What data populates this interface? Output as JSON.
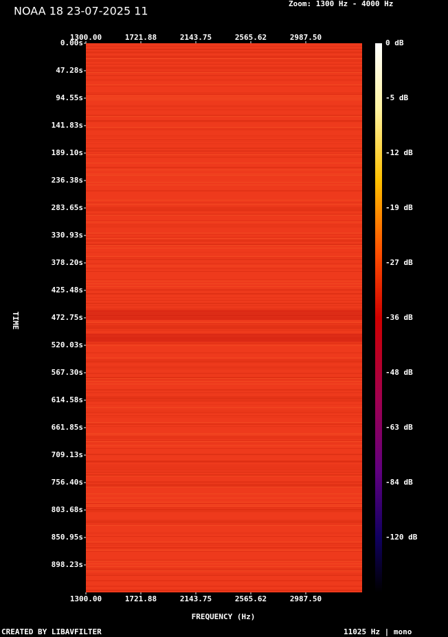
{
  "header": {
    "title": "NOAA 18 23-07-2025 11",
    "zoom": "Zoom: 1300 Hz - 4000 Hz"
  },
  "spectrogram": {
    "frequency_labels_top": [
      "1300.00",
      "1721.88",
      "2143.75",
      "2565.62",
      "2987.50"
    ],
    "frequency_labels_bottom": [
      "1300.00",
      "1721.88",
      "2143.75",
      "2565.62",
      "2987.50"
    ],
    "time_labels": [
      "0.00s",
      "47.28s",
      "94.55s",
      "141.83s",
      "189.10s",
      "236.38s",
      "283.65s",
      "330.93s",
      "378.20s",
      "425.48s",
      "472.75s",
      "520.03s",
      "567.30s",
      "614.58s",
      "661.85s",
      "709.13s",
      "756.40s",
      "803.68s",
      "850.95s",
      "898.23s"
    ],
    "y_axis_label": "TIME",
    "x_axis_label": "FREQUENCY (Hz)",
    "colorbar_labels": [
      "0 dB",
      "-5 dB",
      "-12 dB",
      "-19 dB",
      "-27 dB",
      "-36 dB",
      "-48 dB",
      "-63 dB",
      "-84 dB",
      "-120 dB"
    ]
  },
  "footer": {
    "left": "CREATED BY LIBAVFILTER",
    "right": "11025 Hz | mono"
  }
}
